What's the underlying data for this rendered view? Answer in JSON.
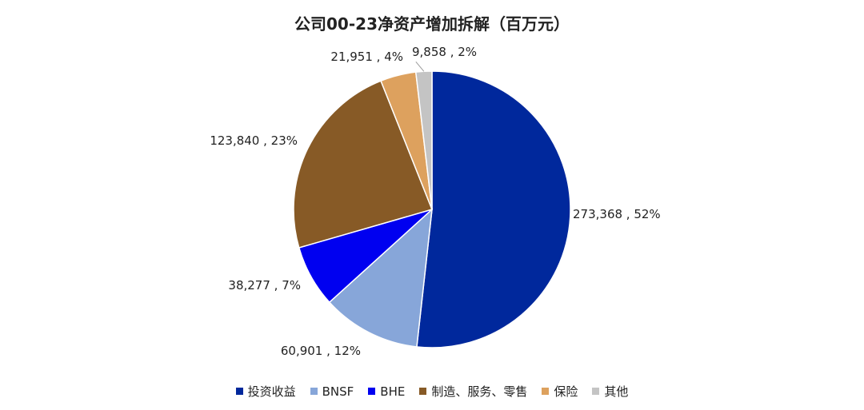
{
  "chart_data": {
    "type": "pie",
    "title": "公司00-23净资产增加拆解（百万元）",
    "slices": [
      {
        "name": "投资收益",
        "value": 273368,
        "percent_label": "52%",
        "label": "273,368 , 52%",
        "color": "#00289C"
      },
      {
        "name": "BNSF",
        "value": 60901,
        "percent_label": "12%",
        "label": "60,901 , 12%",
        "color": "#87A6D9"
      },
      {
        "name": "BHE",
        "value": 38277,
        "percent_label": "7%",
        "label": "38,277 , 7%",
        "color": "#0000F0"
      },
      {
        "name": "制造、服务、零售",
        "value": 123840,
        "percent_label": "23%",
        "label": "123,840 , 23%",
        "color": "#875A26"
      },
      {
        "name": "保险",
        "value": 21951,
        "percent_label": "4%",
        "label": "21,951 , 4%",
        "color": "#DDA15E"
      },
      {
        "name": "其他",
        "value": 9858,
        "percent_label": "2%",
        "label": "9,858 , 2%",
        "color": "#C4C4C4"
      }
    ],
    "start_angle_deg": 0,
    "direction": "clockwise",
    "legend_position": "bottom"
  }
}
